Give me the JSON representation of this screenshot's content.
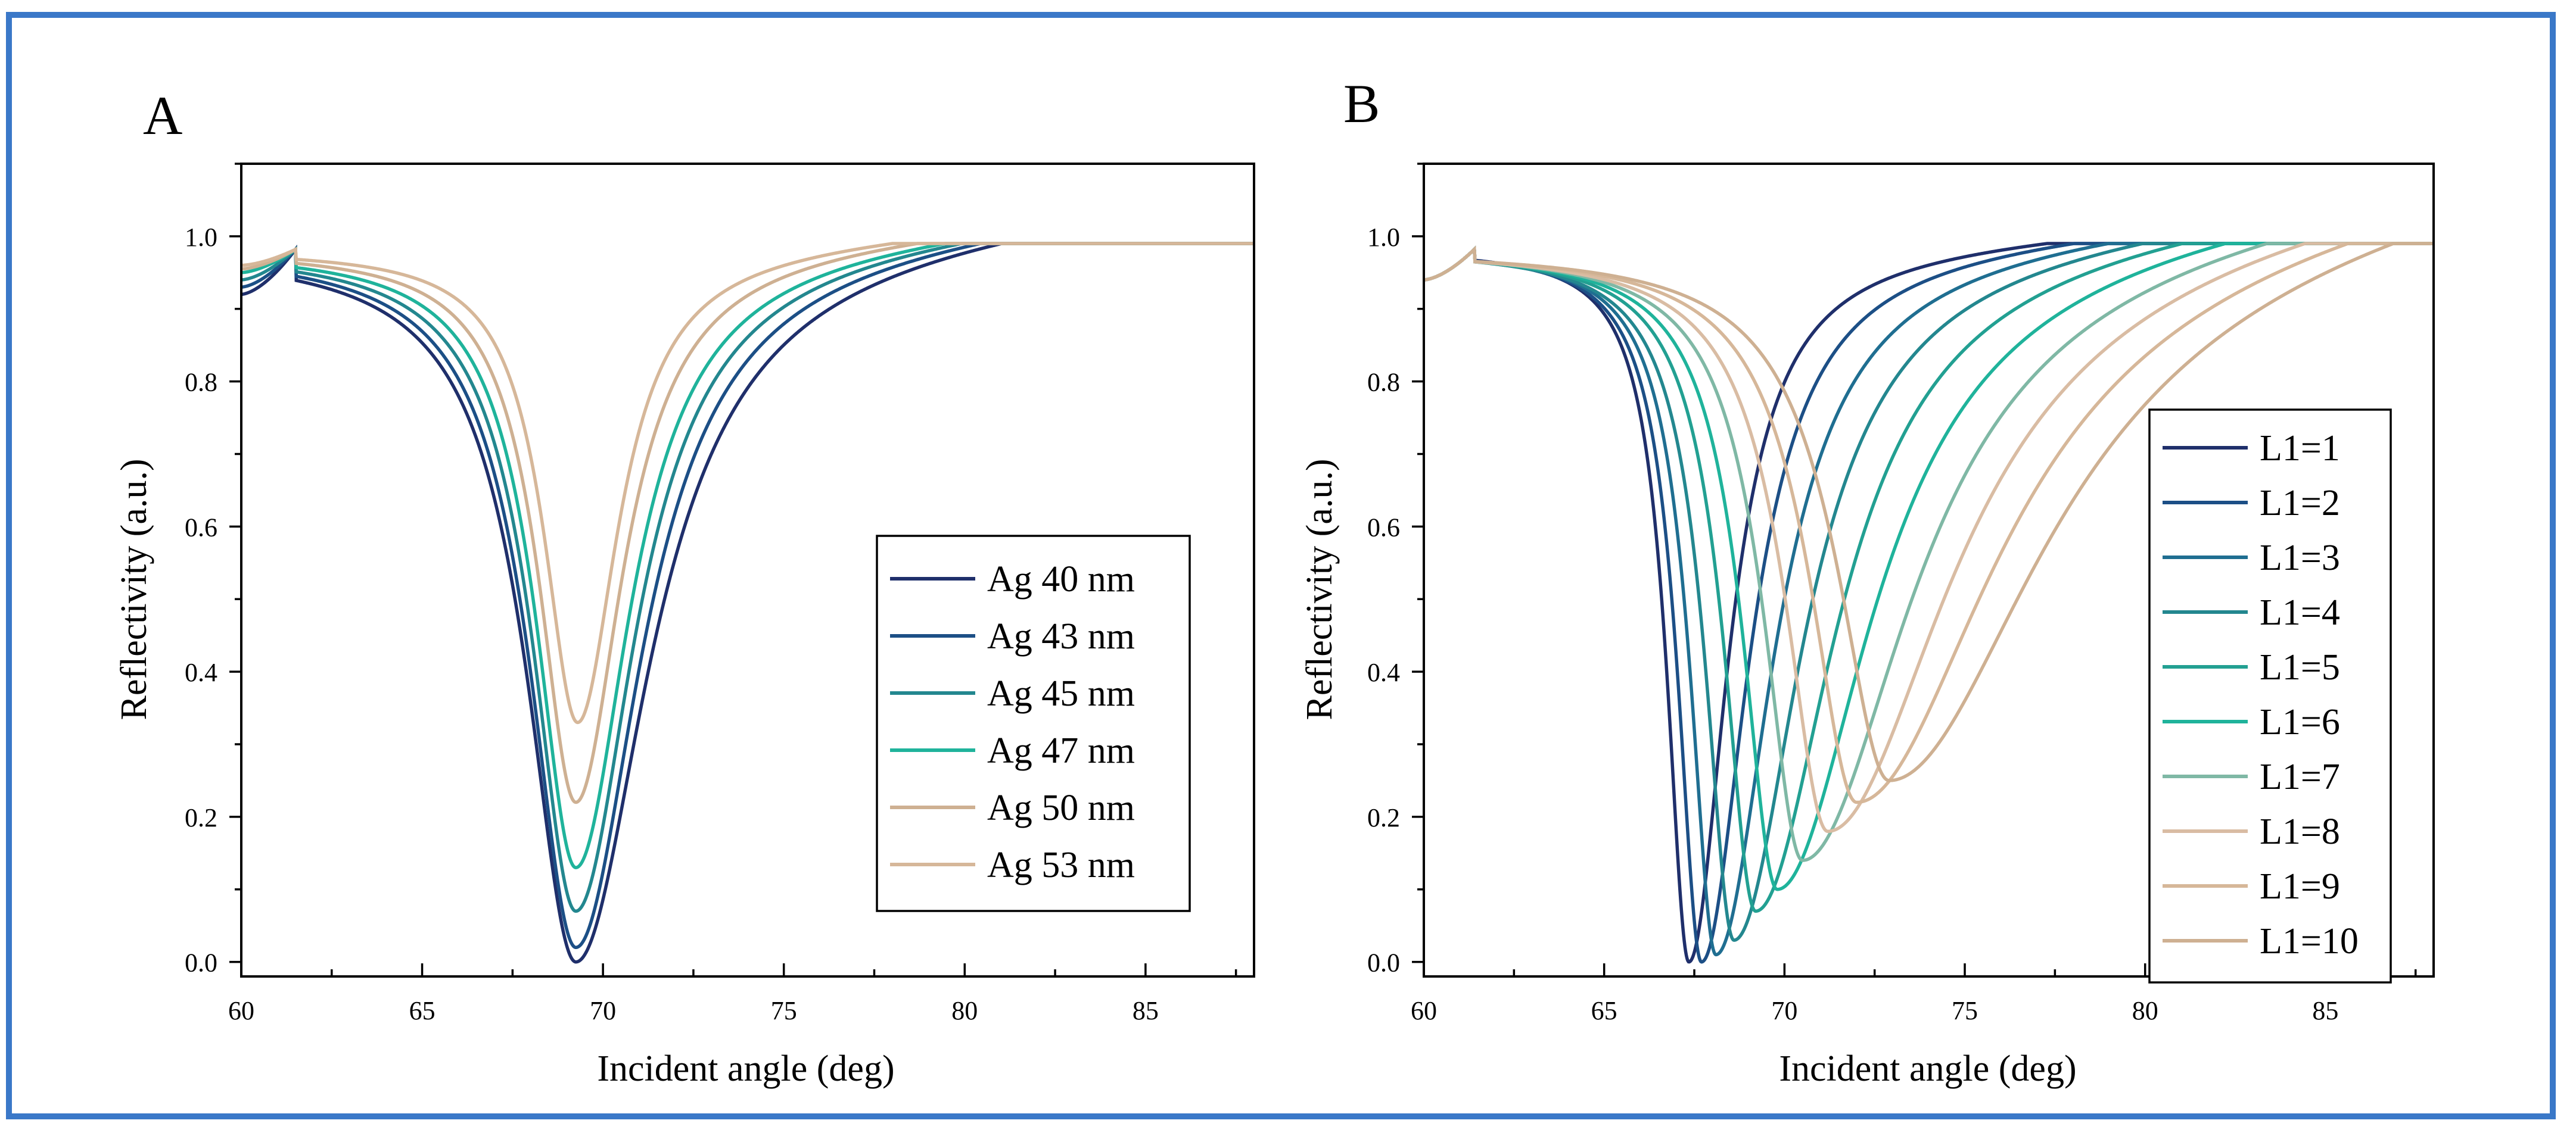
{
  "colors": {
    "frame_border": "#3a78c8",
    "series_colors": [
      "#1f2f6b",
      "#1c4f86",
      "#1f6e91",
      "#23878f",
      "#22a092",
      "#1fb39b",
      "#7fb8a5",
      "#d9bca3",
      "#d6b799",
      "#ceb092"
    ]
  },
  "chart_data": [
    {
      "panel_label": "A",
      "type": "line",
      "title": "",
      "xlabel": "Incident angle (deg)",
      "ylabel": "Reflectivity (a.u.)",
      "xlim": [
        60,
        88
      ],
      "ylim": [
        -0.02,
        1.1
      ],
      "xticks": [
        60,
        65,
        70,
        75,
        80,
        85
      ],
      "yticks": [
        0.0,
        0.2,
        0.4,
        0.6,
        0.8,
        1.0
      ],
      "legend_position": "center-right",
      "series": [
        {
          "name": "Ag 40 nm",
          "color": "#1f2f6b",
          "edge_angle": 61.5,
          "min_angle": 69.25,
          "min_value": 0.0,
          "left_width": 2.45,
          "right_width": 3.6,
          "tail": 0.095,
          "start_value": 0.92
        },
        {
          "name": "Ag 43 nm",
          "color": "#1c4f86",
          "edge_angle": 61.5,
          "min_angle": 69.25,
          "min_value": 0.02,
          "left_width": 2.3,
          "right_width": 3.2,
          "tail": 0.09,
          "start_value": 0.93
        },
        {
          "name": "Ag 45 nm",
          "color": "#23878f",
          "edge_angle": 61.5,
          "min_angle": 69.25,
          "min_value": 0.07,
          "left_width": 2.15,
          "right_width": 2.9,
          "tail": 0.085,
          "start_value": 0.94
        },
        {
          "name": "Ag 47 nm",
          "color": "#1fb39b",
          "edge_angle": 61.5,
          "min_angle": 69.25,
          "min_value": 0.13,
          "left_width": 2.0,
          "right_width": 2.65,
          "tail": 0.08,
          "start_value": 0.95
        },
        {
          "name": "Ag 50 nm",
          "color": "#ceb092",
          "edge_angle": 61.5,
          "min_angle": 69.25,
          "min_value": 0.22,
          "left_width": 1.85,
          "right_width": 2.3,
          "tail": 0.075,
          "start_value": 0.955
        },
        {
          "name": "Ag 53 nm",
          "color": "#d6b799",
          "edge_angle": 61.5,
          "min_angle": 69.3,
          "min_value": 0.33,
          "left_width": 1.7,
          "right_width": 2.0,
          "tail": 0.07,
          "start_value": 0.96
        }
      ]
    },
    {
      "panel_label": "B",
      "type": "line",
      "title": "",
      "xlabel": "Incident angle (deg)",
      "ylabel": "Reflectivity (a.u.)",
      "xlim": [
        60,
        88
      ],
      "ylim": [
        -0.02,
        1.1
      ],
      "xticks": [
        60,
        65,
        70,
        75,
        80,
        85
      ],
      "yticks": [
        0.0,
        0.2,
        0.4,
        0.6,
        0.8,
        1.0
      ],
      "legend_position": "right",
      "series": [
        {
          "name": "L1=1",
          "color": "#1f2f6b",
          "edge_angle": 61.4,
          "min_angle": 67.35,
          "min_value": 0.0,
          "left_width": 1.1,
          "right_width": 1.9,
          "tail": 0.06,
          "start_value": 0.94
        },
        {
          "name": "L1=2",
          "color": "#1c4f86",
          "edge_angle": 61.4,
          "min_angle": 67.7,
          "min_value": 0.0,
          "left_width": 1.2,
          "right_width": 2.3,
          "tail": 0.07,
          "start_value": 0.94
        },
        {
          "name": "L1=3",
          "color": "#1f6e91",
          "edge_angle": 61.4,
          "min_angle": 68.1,
          "min_value": 0.01,
          "left_width": 1.3,
          "right_width": 2.8,
          "tail": 0.08,
          "start_value": 0.94
        },
        {
          "name": "L1=4",
          "color": "#23878f",
          "edge_angle": 61.4,
          "min_angle": 68.6,
          "min_value": 0.03,
          "left_width": 1.45,
          "right_width": 3.3,
          "tail": 0.09,
          "start_value": 0.94
        },
        {
          "name": "L1=5",
          "color": "#22a092",
          "edge_angle": 61.4,
          "min_angle": 69.2,
          "min_value": 0.07,
          "left_width": 1.6,
          "right_width": 3.9,
          "tail": 0.1,
          "start_value": 0.94
        },
        {
          "name": "L1=6",
          "color": "#1fb39b",
          "edge_angle": 61.4,
          "min_angle": 69.8,
          "min_value": 0.1,
          "left_width": 1.75,
          "right_width": 4.6,
          "tail": 0.11,
          "start_value": 0.94
        },
        {
          "name": "L1=7",
          "color": "#7fb8a5",
          "edge_angle": 61.4,
          "min_angle": 70.5,
          "min_value": 0.14,
          "left_width": 1.95,
          "right_width": 5.3,
          "tail": 0.12,
          "start_value": 0.94
        },
        {
          "name": "L1=8",
          "color": "#d9bca3",
          "edge_angle": 61.4,
          "min_angle": 71.2,
          "min_value": 0.18,
          "left_width": 2.15,
          "right_width": 6.0,
          "tail": 0.13,
          "start_value": 0.94
        },
        {
          "name": "L1=9",
          "color": "#d6b799",
          "edge_angle": 61.4,
          "min_angle": 72.0,
          "min_value": 0.22,
          "left_width": 2.35,
          "right_width": 6.8,
          "tail": 0.14,
          "start_value": 0.94
        },
        {
          "name": "L1=10",
          "color": "#ceb092",
          "edge_angle": 61.4,
          "min_angle": 72.9,
          "min_value": 0.25,
          "left_width": 2.6,
          "right_width": 7.6,
          "tail": 0.15,
          "start_value": 0.94
        }
      ]
    }
  ]
}
